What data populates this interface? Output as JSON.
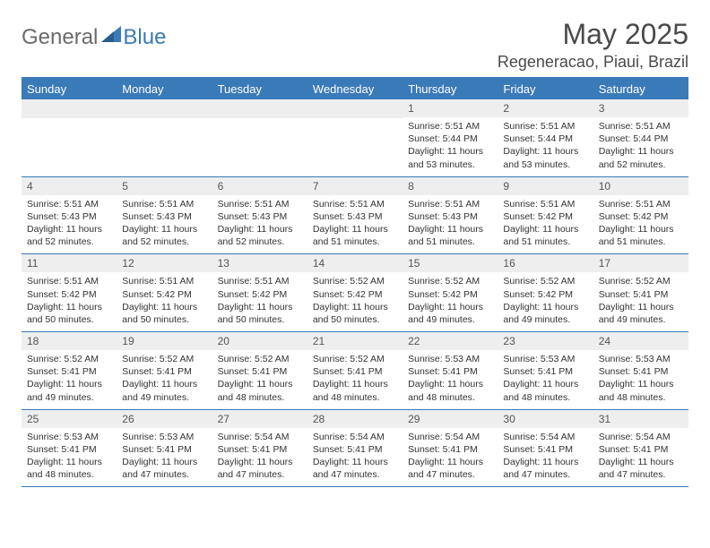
{
  "brand": {
    "part1": "General",
    "part2": "Blue"
  },
  "title": "May 2025",
  "location": "Regeneracao, Piaui, Brazil",
  "colors": {
    "accent": "#3a7ab8",
    "header_text": "#ffffff",
    "daynum_bg": "#eeeeee",
    "text": "#333333",
    "title_text": "#4a4a4a"
  },
  "day_headers": [
    "Sunday",
    "Monday",
    "Tuesday",
    "Wednesday",
    "Thursday",
    "Friday",
    "Saturday"
  ],
  "weeks": [
    [
      {
        "n": "",
        "sr": "",
        "ss": "",
        "dl": ""
      },
      {
        "n": "",
        "sr": "",
        "ss": "",
        "dl": ""
      },
      {
        "n": "",
        "sr": "",
        "ss": "",
        "dl": ""
      },
      {
        "n": "",
        "sr": "",
        "ss": "",
        "dl": ""
      },
      {
        "n": "1",
        "sr": "Sunrise: 5:51 AM",
        "ss": "Sunset: 5:44 PM",
        "dl": "Daylight: 11 hours and 53 minutes."
      },
      {
        "n": "2",
        "sr": "Sunrise: 5:51 AM",
        "ss": "Sunset: 5:44 PM",
        "dl": "Daylight: 11 hours and 53 minutes."
      },
      {
        "n": "3",
        "sr": "Sunrise: 5:51 AM",
        "ss": "Sunset: 5:44 PM",
        "dl": "Daylight: 11 hours and 52 minutes."
      }
    ],
    [
      {
        "n": "4",
        "sr": "Sunrise: 5:51 AM",
        "ss": "Sunset: 5:43 PM",
        "dl": "Daylight: 11 hours and 52 minutes."
      },
      {
        "n": "5",
        "sr": "Sunrise: 5:51 AM",
        "ss": "Sunset: 5:43 PM",
        "dl": "Daylight: 11 hours and 52 minutes."
      },
      {
        "n": "6",
        "sr": "Sunrise: 5:51 AM",
        "ss": "Sunset: 5:43 PM",
        "dl": "Daylight: 11 hours and 52 minutes."
      },
      {
        "n": "7",
        "sr": "Sunrise: 5:51 AM",
        "ss": "Sunset: 5:43 PM",
        "dl": "Daylight: 11 hours and 51 minutes."
      },
      {
        "n": "8",
        "sr": "Sunrise: 5:51 AM",
        "ss": "Sunset: 5:43 PM",
        "dl": "Daylight: 11 hours and 51 minutes."
      },
      {
        "n": "9",
        "sr": "Sunrise: 5:51 AM",
        "ss": "Sunset: 5:42 PM",
        "dl": "Daylight: 11 hours and 51 minutes."
      },
      {
        "n": "10",
        "sr": "Sunrise: 5:51 AM",
        "ss": "Sunset: 5:42 PM",
        "dl": "Daylight: 11 hours and 51 minutes."
      }
    ],
    [
      {
        "n": "11",
        "sr": "Sunrise: 5:51 AM",
        "ss": "Sunset: 5:42 PM",
        "dl": "Daylight: 11 hours and 50 minutes."
      },
      {
        "n": "12",
        "sr": "Sunrise: 5:51 AM",
        "ss": "Sunset: 5:42 PM",
        "dl": "Daylight: 11 hours and 50 minutes."
      },
      {
        "n": "13",
        "sr": "Sunrise: 5:51 AM",
        "ss": "Sunset: 5:42 PM",
        "dl": "Daylight: 11 hours and 50 minutes."
      },
      {
        "n": "14",
        "sr": "Sunrise: 5:52 AM",
        "ss": "Sunset: 5:42 PM",
        "dl": "Daylight: 11 hours and 50 minutes."
      },
      {
        "n": "15",
        "sr": "Sunrise: 5:52 AM",
        "ss": "Sunset: 5:42 PM",
        "dl": "Daylight: 11 hours and 49 minutes."
      },
      {
        "n": "16",
        "sr": "Sunrise: 5:52 AM",
        "ss": "Sunset: 5:42 PM",
        "dl": "Daylight: 11 hours and 49 minutes."
      },
      {
        "n": "17",
        "sr": "Sunrise: 5:52 AM",
        "ss": "Sunset: 5:41 PM",
        "dl": "Daylight: 11 hours and 49 minutes."
      }
    ],
    [
      {
        "n": "18",
        "sr": "Sunrise: 5:52 AM",
        "ss": "Sunset: 5:41 PM",
        "dl": "Daylight: 11 hours and 49 minutes."
      },
      {
        "n": "19",
        "sr": "Sunrise: 5:52 AM",
        "ss": "Sunset: 5:41 PM",
        "dl": "Daylight: 11 hours and 49 minutes."
      },
      {
        "n": "20",
        "sr": "Sunrise: 5:52 AM",
        "ss": "Sunset: 5:41 PM",
        "dl": "Daylight: 11 hours and 48 minutes."
      },
      {
        "n": "21",
        "sr": "Sunrise: 5:52 AM",
        "ss": "Sunset: 5:41 PM",
        "dl": "Daylight: 11 hours and 48 minutes."
      },
      {
        "n": "22",
        "sr": "Sunrise: 5:53 AM",
        "ss": "Sunset: 5:41 PM",
        "dl": "Daylight: 11 hours and 48 minutes."
      },
      {
        "n": "23",
        "sr": "Sunrise: 5:53 AM",
        "ss": "Sunset: 5:41 PM",
        "dl": "Daylight: 11 hours and 48 minutes."
      },
      {
        "n": "24",
        "sr": "Sunrise: 5:53 AM",
        "ss": "Sunset: 5:41 PM",
        "dl": "Daylight: 11 hours and 48 minutes."
      }
    ],
    [
      {
        "n": "25",
        "sr": "Sunrise: 5:53 AM",
        "ss": "Sunset: 5:41 PM",
        "dl": "Daylight: 11 hours and 48 minutes."
      },
      {
        "n": "26",
        "sr": "Sunrise: 5:53 AM",
        "ss": "Sunset: 5:41 PM",
        "dl": "Daylight: 11 hours and 47 minutes."
      },
      {
        "n": "27",
        "sr": "Sunrise: 5:54 AM",
        "ss": "Sunset: 5:41 PM",
        "dl": "Daylight: 11 hours and 47 minutes."
      },
      {
        "n": "28",
        "sr": "Sunrise: 5:54 AM",
        "ss": "Sunset: 5:41 PM",
        "dl": "Daylight: 11 hours and 47 minutes."
      },
      {
        "n": "29",
        "sr": "Sunrise: 5:54 AM",
        "ss": "Sunset: 5:41 PM",
        "dl": "Daylight: 11 hours and 47 minutes."
      },
      {
        "n": "30",
        "sr": "Sunrise: 5:54 AM",
        "ss": "Sunset: 5:41 PM",
        "dl": "Daylight: 11 hours and 47 minutes."
      },
      {
        "n": "31",
        "sr": "Sunrise: 5:54 AM",
        "ss": "Sunset: 5:41 PM",
        "dl": "Daylight: 11 hours and 47 minutes."
      }
    ]
  ]
}
